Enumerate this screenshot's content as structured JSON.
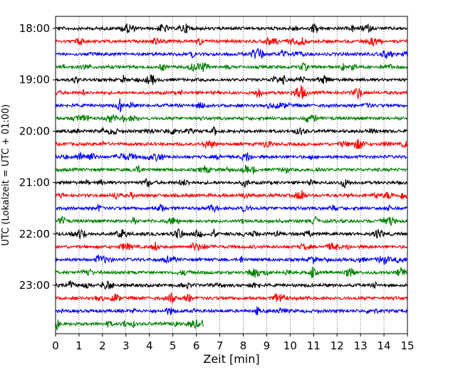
{
  "chart_data": {
    "type": "line",
    "title": "",
    "xlabel": "Zeit  [min]",
    "ylabel": "UTC (Lokalzeit = UTC + 01:00)",
    "xlim": [
      0,
      15
    ],
    "x_ticks": [
      "0",
      "1",
      "2",
      "3",
      "4",
      "5",
      "6",
      "7",
      "8",
      "9",
      "10",
      "11",
      "12",
      "13",
      "14",
      "15"
    ],
    "y_tick_labels": [
      "18:00",
      "19:00",
      "20:00",
      "21:00",
      "22:00",
      "23:00"
    ],
    "grid": "vertical dotted",
    "trace_colors": [
      "#000000",
      "#ff0000",
      "#0000ff",
      "#008000"
    ],
    "traces": [
      {
        "start": "18:00",
        "color": "#000000",
        "duration_min": 15
      },
      {
        "start": "18:15",
        "color": "#ff0000",
        "duration_min": 15
      },
      {
        "start": "18:30",
        "color": "#0000ff",
        "duration_min": 15
      },
      {
        "start": "18:45",
        "color": "#008000",
        "duration_min": 15
      },
      {
        "start": "19:00",
        "color": "#000000",
        "duration_min": 15
      },
      {
        "start": "19:15",
        "color": "#ff0000",
        "duration_min": 15
      },
      {
        "start": "19:30",
        "color": "#0000ff",
        "duration_min": 15
      },
      {
        "start": "19:45",
        "color": "#008000",
        "duration_min": 15
      },
      {
        "start": "20:00",
        "color": "#000000",
        "duration_min": 15
      },
      {
        "start": "20:15",
        "color": "#ff0000",
        "duration_min": 15
      },
      {
        "start": "20:30",
        "color": "#0000ff",
        "duration_min": 15
      },
      {
        "start": "20:45",
        "color": "#008000",
        "duration_min": 15
      },
      {
        "start": "21:00",
        "color": "#000000",
        "duration_min": 15
      },
      {
        "start": "21:15",
        "color": "#ff0000",
        "duration_min": 15
      },
      {
        "start": "21:30",
        "color": "#0000ff",
        "duration_min": 15
      },
      {
        "start": "21:45",
        "color": "#008000",
        "duration_min": 15
      },
      {
        "start": "22:00",
        "color": "#000000",
        "duration_min": 15
      },
      {
        "start": "22:15",
        "color": "#ff0000",
        "duration_min": 15
      },
      {
        "start": "22:30",
        "color": "#0000ff",
        "duration_min": 15
      },
      {
        "start": "22:45",
        "color": "#008000",
        "duration_min": 15
      },
      {
        "start": "23:00",
        "color": "#000000",
        "duration_min": 15
      },
      {
        "start": "23:15",
        "color": "#ff0000",
        "duration_min": 15
      },
      {
        "start": "23:30",
        "color": "#0000ff",
        "duration_min": 15
      },
      {
        "start": "23:45",
        "color": "#008000",
        "duration_min": 6.3
      }
    ]
  }
}
